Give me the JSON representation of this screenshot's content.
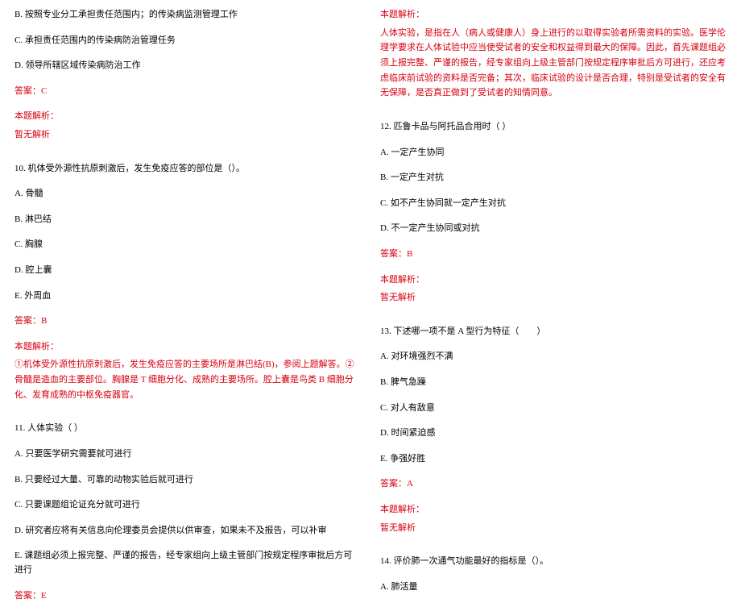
{
  "left": {
    "q0_b": "B. 按照专业分工承担责任范围内；的传染病监测管理工作",
    "q0_c": "C. 承担责任范围内的传染病防治管理任务",
    "q0_d": "D. 领导所辖区域传染病防治工作",
    "q0_ans": "答案：C",
    "q0_exp_h": "本题解析：",
    "q0_exp_b": "暂无解析",
    "q10_stem": "10. 机体受外源性抗原刺激后，发生免疫应答的部位是（）。",
    "q10_a": "A. 骨髓",
    "q10_b": "B. 淋巴结",
    "q10_c": "C. 胸腺",
    "q10_d": "D. 腔上囊",
    "q10_e": "E. 外周血",
    "q10_ans": "答案：B",
    "q10_exp_h": "本题解析：",
    "q10_exp_b": "①机体受外源性抗原刺激后，发生免疫应答的主要场所是淋巴结(B)，参阅上题解答。②骨髓是造血的主要部位。胸腺是 T 细胞分化、成熟的主要场所。腔上囊是鸟类 B 细胞分化、发育成熟的中枢免疫器官。",
    "q11_stem": "11. 人体实验（  ）",
    "q11_a": "A. 只要医学研究需要就可进行",
    "q11_b": "B. 只要经过大量、可靠的动物实验后就可进行",
    "q11_c": "C. 只要课题组论证充分就可进行",
    "q11_d": "D. 研究者应将有关信息向伦理委员会提供以供审查，如果未不及报告，可以补审",
    "q11_e": "E. 课题组必须上报完整、严谨的报告，经专家组向上级主管部门按规定程序审批后方可进行",
    "q11_ans": "答案：E"
  },
  "right": {
    "q11_exp_h": "本题解析：",
    "q11_exp_b": "人体实验，是指在人（病人或健康人）身上进行的以取得实验者所需资料的实验。医学伦理学要求在人体试验中应当使受试者的安全和权益得到最大的保障。因此，首先课题组必须上报完整、严谨的报告，经专家组向上级主管部门按规定程序审批后方可进行，还应考虑临床前试验的资料是否完备；其次，临床试验的设计是否合理，特别是受试者的安全有无保障，是否真正做到了受试者的知情同意。",
    "q12_stem": "12. 匹鲁卡品与阿托品合用时（  ）",
    "q12_a": "A. 一定产生协同",
    "q12_b": "B. 一定产生对抗",
    "q12_c": "C. 如不产生协同就一定产生对抗",
    "q12_d": "D. 不一定产生协同或对抗",
    "q12_ans": "答案：B",
    "q12_exp_h": "本题解析：",
    "q12_exp_b": "暂无解析",
    "q13_stem": "13. 下述哪一项不是 A 型行为特征（　　）",
    "q13_a": "A. 对环境强烈不满",
    "q13_b": "B. 脾气急躁",
    "q13_c": "C. 对人有敌意",
    "q13_d": "D. 时间紧迫感",
    "q13_e": "E. 争强好胜",
    "q13_ans": "答案：A",
    "q13_exp_h": "本题解析：",
    "q13_exp_b": "暂无解析",
    "q14_stem": "14. 评价肺一次通气功能最好的指标是（）。",
    "q14_a": "A. 肺活量"
  }
}
